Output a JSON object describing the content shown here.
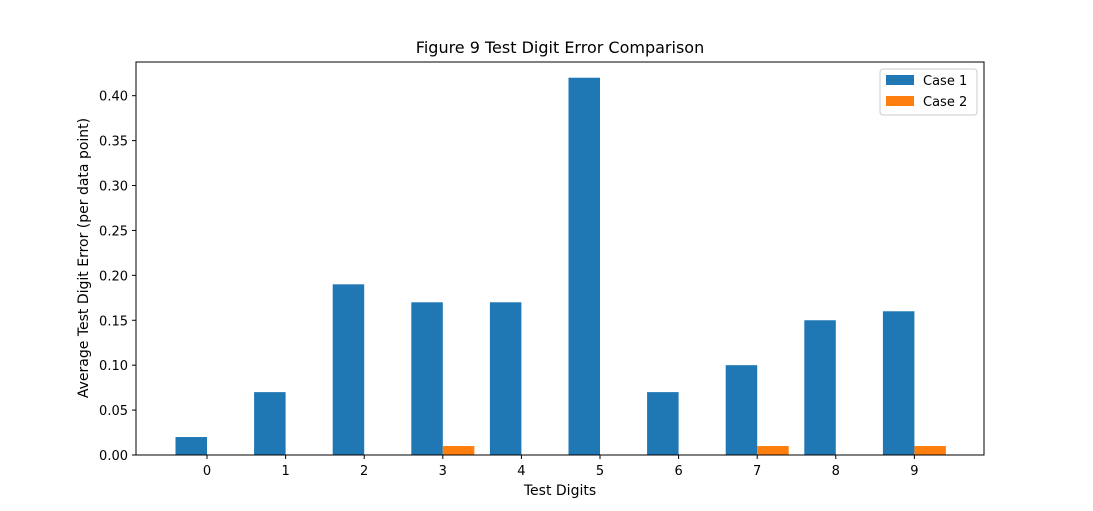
{
  "chart_data": {
    "type": "bar",
    "title": "Figure 9 Test Digit Error Comparison",
    "xlabel": "Test Digits",
    "ylabel": "Average Test Digit Error (per data point)",
    "categories": [
      "0",
      "1",
      "2",
      "3",
      "4",
      "5",
      "6",
      "7",
      "8",
      "9"
    ],
    "series": [
      {
        "name": "Case 1",
        "color": "#1f77b4",
        "values": [
          0.02,
          0.07,
          0.19,
          0.17,
          0.17,
          0.42,
          0.07,
          0.1,
          0.15,
          0.16
        ]
      },
      {
        "name": "Case 2",
        "color": "#ff7f0e",
        "values": [
          0.0,
          0.0,
          0.0,
          0.01,
          0.0,
          0.0,
          0.0,
          0.01,
          0.0,
          0.01
        ]
      }
    ],
    "ylim": [
      0,
      0.4375
    ],
    "yticks": [
      "0.00",
      "0.05",
      "0.10",
      "0.15",
      "0.20",
      "0.25",
      "0.30",
      "0.35",
      "0.40"
    ],
    "grid": false,
    "legend_position": "top-right"
  }
}
